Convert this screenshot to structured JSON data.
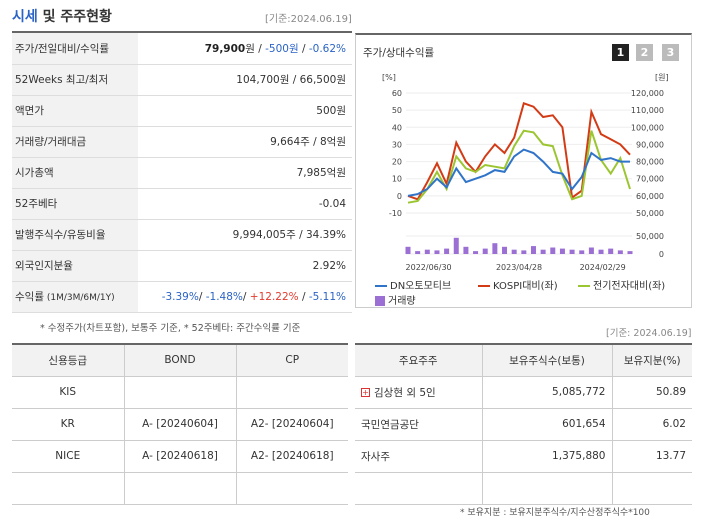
{
  "header": {
    "title_part1": "시세",
    "title_part2": " 및 주주현황",
    "date": "[기준:2024.06.19]"
  },
  "quote_rows": [
    {
      "label": "주가/전일대비/수익률",
      "v1": "79,900",
      "v1_unit": "원",
      "sep1": " / ",
      "v2": "-500원",
      "sep2": " / ",
      "v3": "-0.62%"
    },
    {
      "label": "52Weeks 최고/최저",
      "value": "104,700원 / 66,500원"
    },
    {
      "label": "액면가",
      "value": "500원"
    },
    {
      "label": "거래량/거래대금",
      "value": "9,664주 / 8억원"
    },
    {
      "label": "시가총액",
      "value": "7,985억원"
    },
    {
      "label": "52주베타",
      "value": "-0.04"
    },
    {
      "label": "발행주식수/유동비율",
      "value": "9,994,005주 / 34.39%"
    },
    {
      "label": "외국인지분율",
      "value": "2.92%"
    },
    {
      "label": "수익률",
      "label_sub": " (1M/3M/6M/1Y)",
      "r1": "-3.39%",
      "r2": "-1.48%",
      "r3": "+12.22%",
      "r4": "-5.11%"
    }
  ],
  "note1": "* 수정주가(차트포함), 보통주 기준, * 52주베타: 주간수익률 기준",
  "chart_panel": {
    "title": "주가/상대수익률",
    "tabs": [
      "1",
      "2",
      "3"
    ],
    "left_unit": "[%]",
    "right_unit": "[원]",
    "left_ticks": [
      "60",
      "50",
      "40",
      "30",
      "20",
      "10",
      "0",
      "-10"
    ],
    "right_ticks": [
      "120,000",
      "110,000",
      "100,000",
      "90,000",
      "80,000",
      "70,000",
      "60,000",
      "50,000"
    ],
    "vol_ticks": [
      "50,000",
      "0"
    ],
    "x_ticks": [
      "2022/06/30",
      "2023/04/28",
      "2024/02/29"
    ],
    "legend": [
      "DN오토모티브",
      "KOSPI대비(좌)",
      "전기전자대비(좌)",
      "거래량"
    ],
    "colors": {
      "price": "#2f74c9",
      "kospi": "#d23b15",
      "sector": "#9bc531",
      "volume": "#9b6fd4"
    }
  },
  "chart_data": {
    "type": "line",
    "x_ticks": [
      "2022/06/30",
      "2023/04/28",
      "2024/02/29"
    ],
    "series": [
      {
        "name": "DN오토모티브",
        "axis": "right",
        "values": [
          60000,
          61000,
          64000,
          70000,
          65000,
          76000,
          68000,
          70000,
          72000,
          75000,
          74000,
          83000,
          87000,
          85000,
          80000,
          74000,
          73000,
          64000,
          71000,
          85000,
          81000,
          82000,
          80000,
          80000
        ]
      },
      {
        "name": "KOSPI대비(좌)",
        "axis": "left",
        "values": [
          0,
          -2,
          8,
          19,
          7,
          31,
          20,
          14,
          23,
          30,
          25,
          34,
          54,
          52,
          46,
          47,
          40,
          -1,
          3,
          49,
          36,
          33,
          30,
          24
        ]
      },
      {
        "name": "전기전자대비(좌)",
        "axis": "left",
        "values": [
          -4,
          -3,
          4,
          14,
          4,
          23,
          16,
          14,
          18,
          17,
          16,
          29,
          38,
          37,
          30,
          29,
          12,
          -2,
          0,
          38,
          21,
          13,
          22,
          4
        ]
      },
      {
        "name": "거래량",
        "axis": "volume",
        "values": [
          20000,
          8000,
          12000,
          10000,
          15000,
          45000,
          20000,
          8000,
          15000,
          30000,
          20000,
          12000,
          10000,
          22000,
          12000,
          18000,
          15000,
          12000,
          10000,
          18000,
          12000,
          15000,
          10000,
          8000
        ]
      }
    ],
    "ylim_left": [
      -10,
      60
    ],
    "ylim_right": [
      50000,
      120000
    ],
    "ylim_volume": [
      0,
      50000
    ]
  },
  "credit": {
    "headers": [
      "신용등급",
      "BOND",
      "CP"
    ],
    "rows": [
      [
        "KIS",
        "",
        ""
      ],
      [
        "KR",
        "A-  [20240604]",
        "A2-  [20240604]"
      ],
      [
        "NICE",
        "A-  [20240618]",
        "A2-  [20240618]"
      ]
    ]
  },
  "date2": "[기준: 2024.06.19]",
  "shareholders": {
    "headers": [
      "주요주주",
      "보유주식수(보통)",
      "보유지분(%)"
    ],
    "rows": [
      {
        "name": "김상현 외 5인",
        "shares": "5,085,772",
        "pct": "50.89"
      },
      {
        "name": "국민연금공단",
        "shares": "601,654",
        "pct": "6.02"
      },
      {
        "name": "자사주",
        "shares": "1,375,880",
        "pct": "13.77"
      }
    ]
  },
  "note2": "* 보유지분 : 보유지분주식수/지수산정주식수*100"
}
